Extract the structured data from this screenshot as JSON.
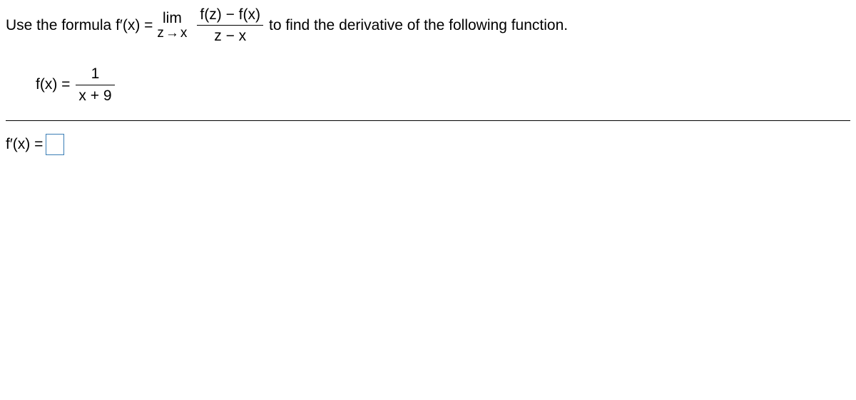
{
  "problem": {
    "intro": "Use the formula f′(x) =",
    "lim_word": "lim",
    "lim_sub_left": "z",
    "lim_sub_arrow": "→",
    "lim_sub_right": "x",
    "diffq_num": "f(z) − f(x)",
    "diffq_den": "z − x",
    "outro": "to find the derivative of the following function."
  },
  "function": {
    "lhs": "f(x) =",
    "num": "1",
    "den": "x + 9"
  },
  "answer": {
    "lhs": "f′(x) ="
  },
  "style": {
    "font_family": "Arial",
    "font_size_pt": 16,
    "text_color": "#000000",
    "background_color": "#ffffff",
    "input_border_color": "#3a7db5",
    "hr_color": "#000000"
  }
}
